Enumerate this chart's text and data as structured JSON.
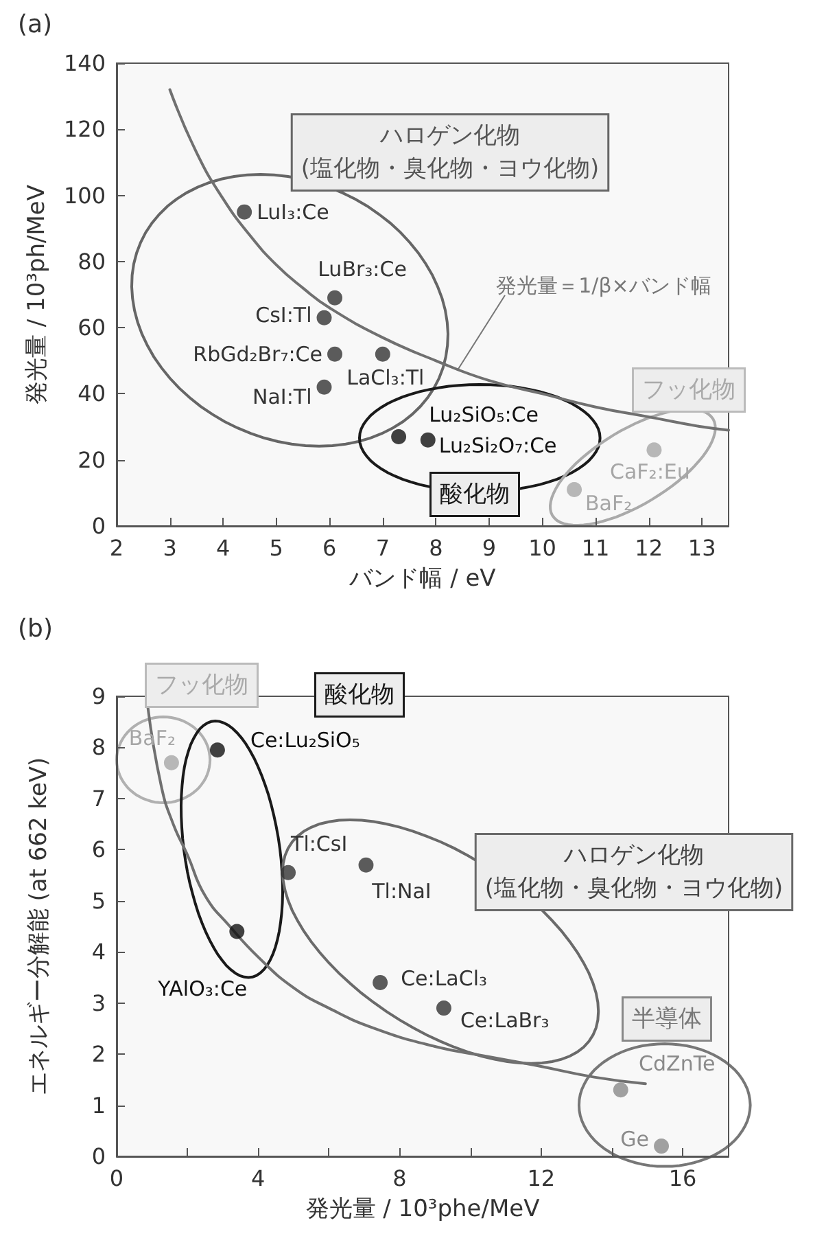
{
  "chart_data": [
    {
      "type": "scatter",
      "title": "(a)",
      "xlabel": "バンド幅 / eV",
      "ylabel": "発光量 / 10³ph/MeV",
      "xlim": [
        2,
        13.5
      ],
      "xticks": [
        2,
        3,
        4,
        5,
        6,
        7,
        8,
        9,
        10,
        11,
        12,
        13
      ],
      "ylim": [
        0,
        140
      ],
      "yticks": [
        0,
        20,
        40,
        60,
        80,
        100,
        120,
        140
      ],
      "series": [
        {
          "type": "line",
          "marker": "none",
          "color": "#707070",
          "x": [
            3,
            3.5,
            4,
            4.5,
            5,
            5.5,
            6,
            7,
            8,
            9,
            10,
            11,
            12,
            13,
            13.5
          ],
          "values": [
            132,
            113,
            99,
            88,
            79,
            72,
            66,
            57,
            50,
            44,
            40,
            36,
            33,
            30,
            29
          ]
        },
        {
          "marker": "circle",
          "color": "#333333",
          "x": [
            4.4,
            6.1,
            5.9,
            6.1,
            7.0,
            5.9
          ],
          "values": [
            95,
            69,
            63,
            52,
            52,
            42
          ]
        },
        {
          "marker": "circle",
          "color": "#111111",
          "x": [
            7.3,
            7.85
          ],
          "values": [
            27,
            26
          ]
        },
        {
          "marker": "circle",
          "color": "#a6a6a6",
          "x": [
            12.1,
            10.6
          ],
          "values": [
            23,
            11
          ]
        }
      ],
      "annotations": [
        "ハロゲン化物\n(塩化物・臭化物・ヨウ化物)",
        "酸化物",
        "フッ化物",
        {
          "text": "発光量＝1/β×バンド幅",
          "x": 8.4,
          "y": 47
        },
        {
          "text": "LuI₃:Ce",
          "x": 4.4,
          "y": 95
        },
        {
          "text": "LuBr₃:Ce",
          "x": 6.1,
          "y": 69
        },
        {
          "text": "CsI:Tl",
          "x": 5.9,
          "y": 63
        },
        {
          "text": "RbGd₂Br₇:Ce",
          "x": 6.1,
          "y": 52
        },
        {
          "text": "LaCl₃:Tl",
          "x": 7.0,
          "y": 52
        },
        {
          "text": "NaI:Tl",
          "x": 5.9,
          "y": 42
        },
        {
          "text": "Lu₂SiO₅:Ce",
          "x": 7.3,
          "y": 27
        },
        {
          "text": "Lu₂Si₂O₇:Ce",
          "x": 7.85,
          "y": 26
        },
        {
          "text": "CaF₂:Eu",
          "x": 12.1,
          "y": 23
        },
        {
          "text": "BaF₂",
          "x": 10.6,
          "y": 11
        }
      ]
    },
    {
      "type": "scatter",
      "title": "(b)",
      "xlabel": "発光量 / 10³phe/MeV",
      "ylabel": "エネルギー分解能 (at 662 keV)",
      "xlim": [
        0,
        17.3
      ],
      "xticks": [
        0,
        {
          "value": 2,
          "label": null
        },
        4,
        {
          "value": 6,
          "label": null
        },
        8,
        {
          "value": 10,
          "label": null
        },
        12,
        {
          "value": 14,
          "label": null
        },
        16
      ],
      "ylim": [
        0,
        9
      ],
      "yticks": [
        0,
        1,
        2,
        3,
        4,
        5,
        6,
        7,
        8,
        9
      ],
      "series": [
        {
          "type": "line",
          "marker": "none",
          "color": "#707070",
          "x": [
            0.88,
            1.26,
            1.6,
            2.0,
            2.5,
            3.2,
            4,
            5,
            6,
            7.3,
            9,
            10.5,
            11.85,
            13.5,
            14.95
          ],
          "values": [
            8.8,
            7.25,
            6.5,
            5.9,
            5.1,
            4.5,
            3.9,
            3.3,
            2.9,
            2.5,
            2.15,
            1.95,
            1.78,
            1.55,
            1.42
          ]
        },
        {
          "marker": "circle",
          "color": "#a6a6a6",
          "x": [
            1.55
          ],
          "values": [
            7.7
          ]
        },
        {
          "marker": "circle",
          "color": "#111111",
          "x": [
            2.85,
            3.4
          ],
          "values": [
            7.95,
            4.4
          ]
        },
        {
          "marker": "circle",
          "color": "#333333",
          "x": [
            4.85,
            7.05,
            7.45,
            9.25
          ],
          "values": [
            5.55,
            5.7,
            3.4,
            2.9
          ]
        },
        {
          "marker": "circle",
          "color": "#8a8a8a",
          "x": [
            14.25,
            15.4
          ],
          "values": [
            1.3,
            0.2
          ]
        }
      ],
      "annotations": [
        "フッ化物",
        "酸化物",
        "ハロゲン化物\n(塩化物・臭化物・ヨウ化物)",
        "半導体",
        {
          "text": "BaF₂",
          "x": 1.55,
          "y": 7.7
        },
        {
          "text": "Ce:Lu₂SiO₅",
          "x": 2.85,
          "y": 7.95
        },
        {
          "text": "YAlO₃:Ce",
          "x": 3.4,
          "y": 4.4
        },
        {
          "text": "Tl:CsI",
          "x": 4.85,
          "y": 5.55
        },
        {
          "text": "Tl:NaI",
          "x": 7.05,
          "y": 5.7
        },
        {
          "text": "Ce:LaCl₃",
          "x": 7.45,
          "y": 3.4
        },
        {
          "text": "Ce:LaBr₃",
          "x": 9.25,
          "y": 2.9
        },
        {
          "text": "CdZnTe",
          "x": 14.25,
          "y": 1.3
        },
        {
          "text": "Ge",
          "x": 15.4,
          "y": 0.2
        }
      ]
    }
  ]
}
